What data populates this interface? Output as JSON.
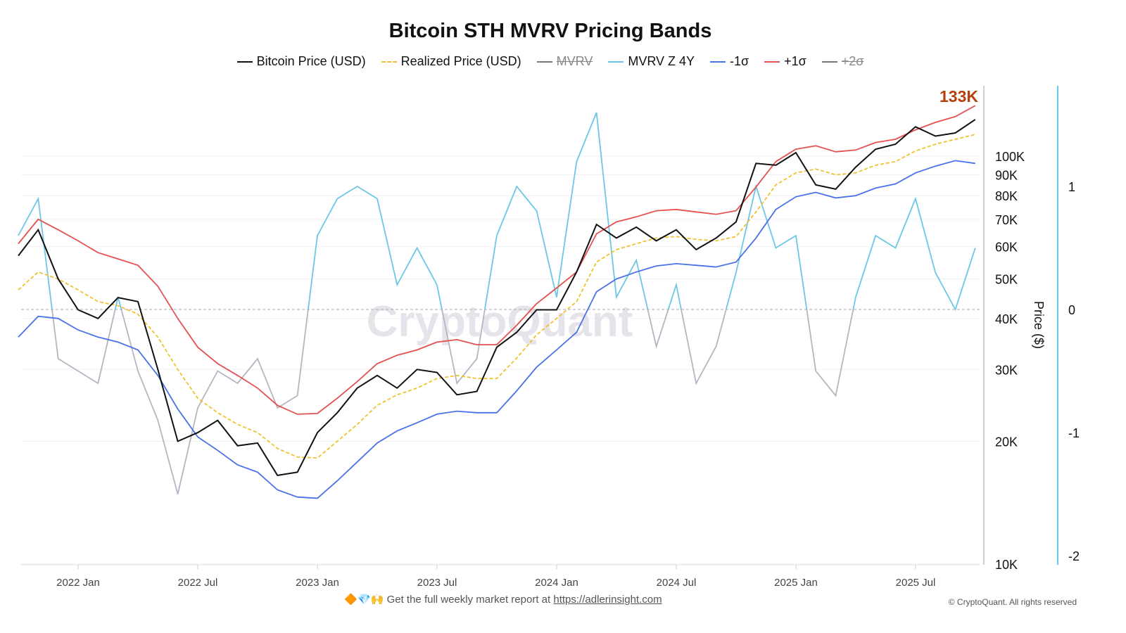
{
  "title": "Bitcoin STH MVRV Pricing Bands",
  "legend": [
    {
      "label": "Bitcoin Price (USD)",
      "color": "#111111",
      "style": "solid",
      "visible": true
    },
    {
      "label": "Realized Price (USD)",
      "color": "#f2c12e",
      "style": "dashed",
      "visible": true
    },
    {
      "label": "MVRV",
      "color": "#77767f",
      "style": "solid",
      "visible": false
    },
    {
      "label": "MVRV Z 4Y",
      "color": "#6cc7e6",
      "style": "solid",
      "visible": true
    },
    {
      "label": "-1σ",
      "color": "#4a72e8",
      "style": "solid",
      "visible": true
    },
    {
      "label": "+1σ",
      "color": "#e55050",
      "style": "solid",
      "visible": true
    },
    {
      "label": "+2σ",
      "color": "#77767f",
      "style": "solid",
      "visible": false
    }
  ],
  "footer": {
    "emoji": "🔶💎🙌",
    "text": "Get the full weekly market report at",
    "link": "https://adlerinsight.com",
    "copyright": "© CryptoQuant. All rights reserved"
  },
  "watermark": "CryptoQuant",
  "chart_data": {
    "type": "line",
    "title": "Bitcoin STH MVRV Pricing Bands",
    "ylabel": "Price ($)",
    "y_scale": "log",
    "ylim": [
      10000,
      150000
    ],
    "y2lim": [
      -2.1,
      1.8
    ],
    "x_ticks": [
      "2022 Jan",
      "2022 Jul",
      "2023 Jan",
      "2023 Jul",
      "2024 Jan",
      "2024 Jul",
      "2025 Jan",
      "2025 Jul"
    ],
    "y_ticks": [
      {
        "v": 10000,
        "l": "10K"
      },
      {
        "v": 20000,
        "l": "20K"
      },
      {
        "v": 30000,
        "l": "30K"
      },
      {
        "v": 40000,
        "l": "40K"
      },
      {
        "v": 50000,
        "l": "50K"
      },
      {
        "v": 60000,
        "l": "60K"
      },
      {
        "v": 70000,
        "l": "70K"
      },
      {
        "v": 80000,
        "l": "80K"
      },
      {
        "v": 90000,
        "l": "90K"
      },
      {
        "v": 100000,
        "l": "100K"
      }
    ],
    "y2_ticks": [
      1,
      0,
      -1,
      -2
    ],
    "last_value_label": "133K",
    "last_value_color": "#b5400c",
    "negative_z_color": "#b7b4c3",
    "x": [
      "2021-10",
      "2021-11",
      "2021-12",
      "2022-01",
      "2022-02",
      "2022-03",
      "2022-04",
      "2022-05",
      "2022-06",
      "2022-07",
      "2022-08",
      "2022-09",
      "2022-10",
      "2022-11",
      "2022-12",
      "2023-01",
      "2023-02",
      "2023-03",
      "2023-04",
      "2023-05",
      "2023-06",
      "2023-07",
      "2023-08",
      "2023-09",
      "2023-10",
      "2023-11",
      "2023-12",
      "2024-01",
      "2024-02",
      "2024-03",
      "2024-04",
      "2024-05",
      "2024-06",
      "2024-07",
      "2024-08",
      "2024-09",
      "2024-10",
      "2024-11",
      "2024-12",
      "2025-01",
      "2025-02",
      "2025-03",
      "2025-04",
      "2025-05",
      "2025-06",
      "2025-07",
      "2025-08",
      "2025-09",
      "2025-10"
    ],
    "series": [
      {
        "name": "Bitcoin Price (USD)",
        "axis": "price",
        "values": [
          57000,
          66000,
          50000,
          42000,
          40000,
          45000,
          44000,
          30000,
          20000,
          21000,
          22500,
          19500,
          19800,
          16500,
          16800,
          21000,
          23500,
          27000,
          29000,
          27000,
          30000,
          29500,
          26000,
          26500,
          34000,
          37000,
          42000,
          42000,
          52000,
          68000,
          63000,
          67000,
          62000,
          66000,
          59000,
          63000,
          69000,
          96000,
          95000,
          102000,
          85000,
          83000,
          94000,
          104000,
          107000,
          118000,
          112000,
          114000,
          123000
        ]
      },
      {
        "name": "Realized Price (USD)",
        "axis": "price",
        "values": [
          47000,
          52000,
          50000,
          47000,
          44000,
          43000,
          41000,
          36000,
          30000,
          25500,
          23500,
          22000,
          21000,
          19200,
          18300,
          18200,
          20000,
          22000,
          24500,
          26000,
          27000,
          28500,
          29000,
          28500,
          28500,
          32000,
          36500,
          40000,
          44000,
          55000,
          59000,
          61000,
          63000,
          63500,
          62500,
          62000,
          63500,
          73000,
          85000,
          91000,
          93000,
          90000,
          91000,
          95000,
          97000,
          103000,
          107000,
          110000,
          113000
        ]
      },
      {
        "name": "+1σ",
        "axis": "price",
        "values": [
          61000,
          70000,
          66000,
          62000,
          58000,
          56000,
          54000,
          48000,
          40000,
          34000,
          31000,
          29000,
          27000,
          24500,
          23300,
          23400,
          25500,
          28000,
          31000,
          32500,
          33500,
          35000,
          35500,
          34500,
          34500,
          38500,
          43500,
          47500,
          52000,
          64500,
          69000,
          71000,
          73500,
          74000,
          73000,
          72000,
          73500,
          84000,
          97000,
          104000,
          106000,
          102500,
          103500,
          108000,
          110000,
          116000,
          121000,
          125000,
          133000
        ]
      },
      {
        "name": "-1σ",
        "axis": "price",
        "values": [
          36000,
          40500,
          40000,
          37500,
          36000,
          35000,
          33500,
          29000,
          24000,
          20500,
          19000,
          17500,
          16800,
          15200,
          14600,
          14500,
          16000,
          17800,
          19800,
          21200,
          22200,
          23300,
          23700,
          23500,
          23500,
          26600,
          30400,
          33500,
          37000,
          46500,
          50000,
          52000,
          53800,
          54500,
          54000,
          53500,
          55000,
          63000,
          74000,
          79500,
          81500,
          79000,
          80000,
          83500,
          85500,
          91000,
          94500,
          97500,
          96000
        ]
      },
      {
        "name": "MVRV Z 4Y",
        "axis": "z",
        "values": [
          0.6,
          0.9,
          -0.4,
          -0.5,
          -0.6,
          0.1,
          -0.5,
          -0.9,
          -1.5,
          -0.8,
          -0.5,
          -0.6,
          -0.4,
          -0.8,
          -0.7,
          0.6,
          0.9,
          1.0,
          0.9,
          0.2,
          0.5,
          0.2,
          -0.6,
          -0.4,
          0.6,
          1.0,
          0.8,
          0.1,
          1.2,
          1.6,
          0.1,
          0.4,
          -0.3,
          0.2,
          -0.6,
          -0.3,
          0.3,
          1.0,
          0.5,
          0.6,
          -0.5,
          -0.7,
          0.1,
          0.6,
          0.5,
          0.9,
          0.3,
          0.0,
          0.5
        ]
      }
    ]
  }
}
